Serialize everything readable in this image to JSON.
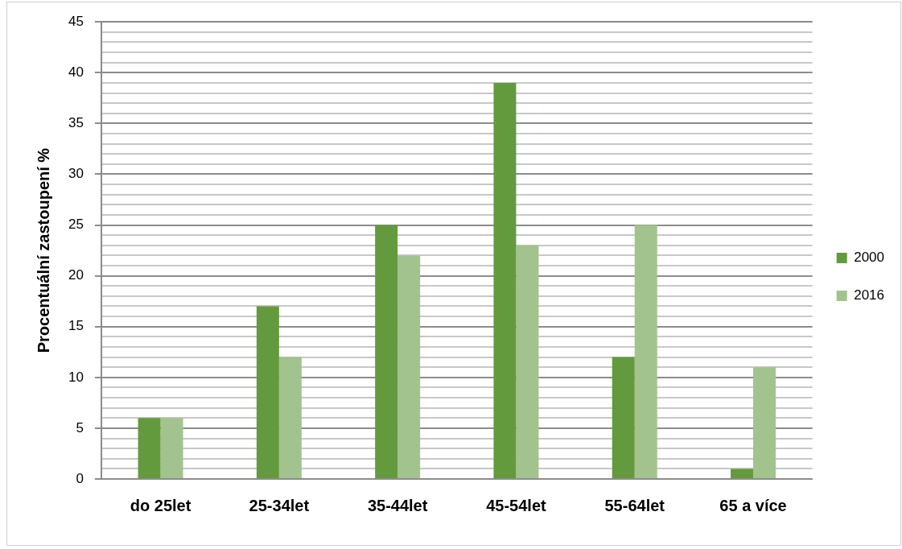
{
  "chart_data": {
    "type": "bar",
    "ylabel": "Procentuální zastoupení %",
    "categories": [
      "do 25let",
      "25-34let",
      "35-44let",
      "45-54let",
      "55-64let",
      "65 a více"
    ],
    "series": [
      {
        "name": "2000",
        "color": "#639a3e",
        "values": [
          6,
          17,
          25,
          39,
          12,
          1
        ]
      },
      {
        "name": "2016",
        "color": "#a2c38d",
        "values": [
          6,
          12,
          22,
          23,
          25,
          11
        ]
      }
    ],
    "ylim": [
      0,
      45
    ],
    "yticks": [
      0,
      {
        "value": 1,
        "label": null
      },
      {
        "value": 2,
        "label": null
      },
      {
        "value": 3,
        "label": null
      },
      {
        "value": 4,
        "label": null
      },
      5,
      {
        "value": 6,
        "label": null
      },
      {
        "value": 7,
        "label": null
      },
      {
        "value": 8,
        "label": null
      },
      {
        "value": 9,
        "label": null
      },
      10,
      {
        "value": 11,
        "label": null
      },
      {
        "value": 12,
        "label": null
      },
      {
        "value": 13,
        "label": null
      },
      {
        "value": 14,
        "label": null
      },
      15,
      {
        "value": 16,
        "label": null
      },
      {
        "value": 17,
        "label": null
      },
      {
        "value": 18,
        "label": null
      },
      {
        "value": 19,
        "label": null
      },
      20,
      {
        "value": 21,
        "label": null
      },
      {
        "value": 22,
        "label": null
      },
      {
        "value": 23,
        "label": null
      },
      {
        "value": 24,
        "label": null
      },
      25,
      {
        "value": 26,
        "label": null
      },
      {
        "value": 27,
        "label": null
      },
      {
        "value": 28,
        "label": null
      },
      {
        "value": 29,
        "label": null
      },
      30,
      {
        "value": 31,
        "label": null
      },
      {
        "value": 32,
        "label": null
      },
      {
        "value": 33,
        "label": null
      },
      {
        "value": 34,
        "label": null
      },
      35,
      {
        "value": 36,
        "label": null
      },
      {
        "value": 37,
        "label": null
      },
      {
        "value": 38,
        "label": null
      },
      {
        "value": 39,
        "label": null
      },
      40,
      {
        "value": 41,
        "label": null
      },
      {
        "value": 42,
        "label": null
      },
      {
        "value": 43,
        "label": null
      },
      {
        "value": 44,
        "label": null
      },
      45
    ],
    "grid": "y",
    "legend": "right"
  }
}
